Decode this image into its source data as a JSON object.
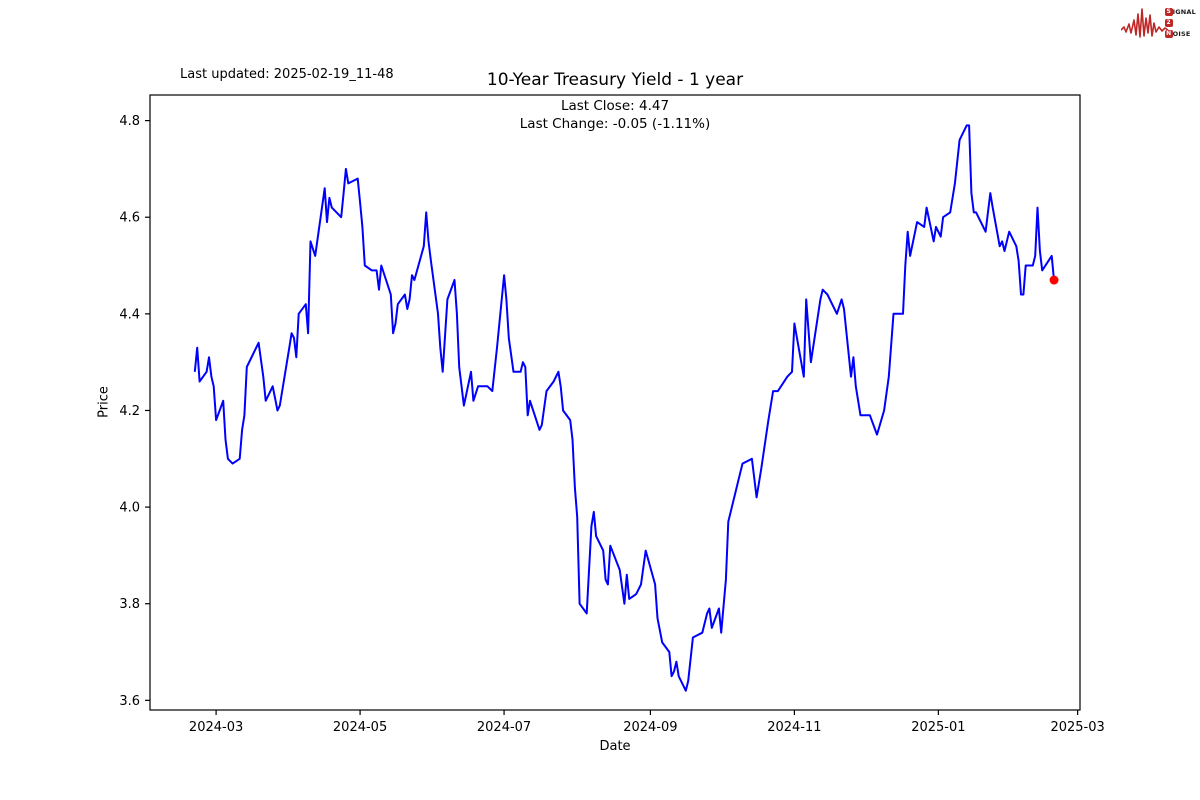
{
  "header": {
    "last_updated": "Last updated: 2025-02-19_11-48"
  },
  "logo": {
    "color": "#bf2626",
    "rows": [
      {
        "badge": "S",
        "text": "IGNAL"
      },
      {
        "badge": "2",
        "text": ""
      },
      {
        "badge": "N",
        "text": "OISE"
      }
    ]
  },
  "chart_data": {
    "type": "line",
    "title": "10-Year Treasury Yield - 1 year",
    "subtitle_lines": [
      "Last Close: 4.47",
      "Last Change: -0.05 (-1.11%)"
    ],
    "xlabel": "Date",
    "ylabel": "Price",
    "x_ticks": [
      "2024-03",
      "2024-05",
      "2024-07",
      "2024-09",
      "2024-11",
      "2025-01",
      "2025-03"
    ],
    "y_ticks": [
      "3.6",
      "3.8",
      "4.0",
      "4.2",
      "4.4",
      "4.6",
      "4.8"
    ],
    "xlim": [
      "2024-02-02",
      "2025-03-02"
    ],
    "ylim": [
      3.58,
      4.853
    ],
    "grid": false,
    "legend": "none",
    "line_color": "#0000ff",
    "last_point": {
      "date": "2025-02-19",
      "value": 4.47,
      "marker_color": "#ff0000"
    },
    "series_name": "10-Year Treasury Yield",
    "points": [
      [
        "2024-02-21",
        4.28
      ],
      [
        "2024-02-22",
        4.33
      ],
      [
        "2024-02-23",
        4.26
      ],
      [
        "2024-02-26",
        4.28
      ],
      [
        "2024-02-27",
        4.31
      ],
      [
        "2024-02-28",
        4.27
      ],
      [
        "2024-02-29",
        4.25
      ],
      [
        "2024-03-01",
        4.18
      ],
      [
        "2024-03-04",
        4.22
      ],
      [
        "2024-03-05",
        4.14
      ],
      [
        "2024-03-06",
        4.1
      ],
      [
        "2024-03-08",
        4.09
      ],
      [
        "2024-03-11",
        4.1
      ],
      [
        "2024-03-12",
        4.16
      ],
      [
        "2024-03-13",
        4.19
      ],
      [
        "2024-03-14",
        4.29
      ],
      [
        "2024-03-18",
        4.33
      ],
      [
        "2024-03-19",
        4.34
      ],
      [
        "2024-03-21",
        4.27
      ],
      [
        "2024-03-22",
        4.22
      ],
      [
        "2024-03-25",
        4.25
      ],
      [
        "2024-03-27",
        4.2
      ],
      [
        "2024-03-28",
        4.21
      ],
      [
        "2024-04-01",
        4.33
      ],
      [
        "2024-04-02",
        4.36
      ],
      [
        "2024-04-03",
        4.35
      ],
      [
        "2024-04-04",
        4.31
      ],
      [
        "2024-04-05",
        4.4
      ],
      [
        "2024-04-08",
        4.42
      ],
      [
        "2024-04-09",
        4.36
      ],
      [
        "2024-04-10",
        4.55
      ],
      [
        "2024-04-12",
        4.52
      ],
      [
        "2024-04-16",
        4.66
      ],
      [
        "2024-04-17",
        4.59
      ],
      [
        "2024-04-18",
        4.64
      ],
      [
        "2024-04-19",
        4.62
      ],
      [
        "2024-04-23",
        4.6
      ],
      [
        "2024-04-24",
        4.65
      ],
      [
        "2024-04-25",
        4.7
      ],
      [
        "2024-04-26",
        4.67
      ],
      [
        "2024-04-30",
        4.68
      ],
      [
        "2024-05-01",
        4.63
      ],
      [
        "2024-05-02",
        4.58
      ],
      [
        "2024-05-03",
        4.5
      ],
      [
        "2024-05-06",
        4.49
      ],
      [
        "2024-05-08",
        4.49
      ],
      [
        "2024-05-09",
        4.45
      ],
      [
        "2024-05-10",
        4.5
      ],
      [
        "2024-05-14",
        4.44
      ],
      [
        "2024-05-15",
        4.36
      ],
      [
        "2024-05-16",
        4.38
      ],
      [
        "2024-05-17",
        4.42
      ],
      [
        "2024-05-20",
        4.44
      ],
      [
        "2024-05-21",
        4.41
      ],
      [
        "2024-05-22",
        4.43
      ],
      [
        "2024-05-23",
        4.48
      ],
      [
        "2024-05-24",
        4.47
      ],
      [
        "2024-05-28",
        4.54
      ],
      [
        "2024-05-29",
        4.61
      ],
      [
        "2024-05-30",
        4.55
      ],
      [
        "2024-05-31",
        4.51
      ],
      [
        "2024-06-03",
        4.4
      ],
      [
        "2024-06-04",
        4.33
      ],
      [
        "2024-06-05",
        4.28
      ],
      [
        "2024-06-07",
        4.43
      ],
      [
        "2024-06-10",
        4.47
      ],
      [
        "2024-06-11",
        4.4
      ],
      [
        "2024-06-12",
        4.29
      ],
      [
        "2024-06-14",
        4.21
      ],
      [
        "2024-06-17",
        4.28
      ],
      [
        "2024-06-18",
        4.22
      ],
      [
        "2024-06-20",
        4.25
      ],
      [
        "2024-06-24",
        4.25
      ],
      [
        "2024-06-26",
        4.24
      ],
      [
        "2024-06-28",
        4.33
      ],
      [
        "2024-07-01",
        4.48
      ],
      [
        "2024-07-02",
        4.43
      ],
      [
        "2024-07-03",
        4.35
      ],
      [
        "2024-07-05",
        4.28
      ],
      [
        "2024-07-08",
        4.28
      ],
      [
        "2024-07-09",
        4.3
      ],
      [
        "2024-07-10",
        4.29
      ],
      [
        "2024-07-11",
        4.19
      ],
      [
        "2024-07-12",
        4.22
      ],
      [
        "2024-07-16",
        4.16
      ],
      [
        "2024-07-17",
        4.17
      ],
      [
        "2024-07-19",
        4.24
      ],
      [
        "2024-07-22",
        4.26
      ],
      [
        "2024-07-24",
        4.28
      ],
      [
        "2024-07-25",
        4.25
      ],
      [
        "2024-07-26",
        4.2
      ],
      [
        "2024-07-29",
        4.18
      ],
      [
        "2024-07-30",
        4.14
      ],
      [
        "2024-07-31",
        4.04
      ],
      [
        "2024-08-01",
        3.98
      ],
      [
        "2024-08-02",
        3.8
      ],
      [
        "2024-08-05",
        3.78
      ],
      [
        "2024-08-07",
        3.96
      ],
      [
        "2024-08-08",
        3.99
      ],
      [
        "2024-08-09",
        3.94
      ],
      [
        "2024-08-12",
        3.91
      ],
      [
        "2024-08-13",
        3.85
      ],
      [
        "2024-08-14",
        3.84
      ],
      [
        "2024-08-15",
        3.92
      ],
      [
        "2024-08-19",
        3.87
      ],
      [
        "2024-08-21",
        3.8
      ],
      [
        "2024-08-22",
        3.86
      ],
      [
        "2024-08-23",
        3.81
      ],
      [
        "2024-08-26",
        3.82
      ],
      [
        "2024-08-28",
        3.84
      ],
      [
        "2024-08-30",
        3.91
      ],
      [
        "2024-09-03",
        3.84
      ],
      [
        "2024-09-04",
        3.77
      ],
      [
        "2024-09-06",
        3.72
      ],
      [
        "2024-09-09",
        3.7
      ],
      [
        "2024-09-10",
        3.65
      ],
      [
        "2024-09-11",
        3.66
      ],
      [
        "2024-09-12",
        3.68
      ],
      [
        "2024-09-13",
        3.65
      ],
      [
        "2024-09-16",
        3.62
      ],
      [
        "2024-09-17",
        3.64
      ],
      [
        "2024-09-19",
        3.73
      ],
      [
        "2024-09-23",
        3.74
      ],
      [
        "2024-09-25",
        3.78
      ],
      [
        "2024-09-26",
        3.79
      ],
      [
        "2024-09-27",
        3.75
      ],
      [
        "2024-09-30",
        3.79
      ],
      [
        "2024-10-01",
        3.74
      ],
      [
        "2024-10-03",
        3.85
      ],
      [
        "2024-10-04",
        3.97
      ],
      [
        "2024-10-07",
        4.03
      ],
      [
        "2024-10-09",
        4.07
      ],
      [
        "2024-10-10",
        4.09
      ],
      [
        "2024-10-14",
        4.1
      ],
      [
        "2024-10-16",
        4.02
      ],
      [
        "2024-10-18",
        4.08
      ],
      [
        "2024-10-21",
        4.18
      ],
      [
        "2024-10-23",
        4.24
      ],
      [
        "2024-10-25",
        4.24
      ],
      [
        "2024-10-29",
        4.27
      ],
      [
        "2024-10-31",
        4.28
      ],
      [
        "2024-11-01",
        4.38
      ],
      [
        "2024-11-05",
        4.27
      ],
      [
        "2024-11-06",
        4.43
      ],
      [
        "2024-11-08",
        4.3
      ],
      [
        "2024-11-12",
        4.43
      ],
      [
        "2024-11-13",
        4.45
      ],
      [
        "2024-11-15",
        4.44
      ],
      [
        "2024-11-19",
        4.4
      ],
      [
        "2024-11-21",
        4.43
      ],
      [
        "2024-11-22",
        4.41
      ],
      [
        "2024-11-25",
        4.27
      ],
      [
        "2024-11-26",
        4.31
      ],
      [
        "2024-11-27",
        4.25
      ],
      [
        "2024-11-29",
        4.19
      ],
      [
        "2024-12-03",
        4.19
      ],
      [
        "2024-12-06",
        4.15
      ],
      [
        "2024-12-09",
        4.2
      ],
      [
        "2024-12-11",
        4.27
      ],
      [
        "2024-12-13",
        4.4
      ],
      [
        "2024-12-17",
        4.4
      ],
      [
        "2024-12-18",
        4.5
      ],
      [
        "2024-12-19",
        4.57
      ],
      [
        "2024-12-20",
        4.52
      ],
      [
        "2024-12-23",
        4.59
      ],
      [
        "2024-12-26",
        4.58
      ],
      [
        "2024-12-27",
        4.62
      ],
      [
        "2024-12-30",
        4.55
      ],
      [
        "2024-12-31",
        4.58
      ],
      [
        "2025-01-02",
        4.56
      ],
      [
        "2025-01-03",
        4.6
      ],
      [
        "2025-01-06",
        4.61
      ],
      [
        "2025-01-08",
        4.67
      ],
      [
        "2025-01-10",
        4.76
      ],
      [
        "2025-01-13",
        4.79
      ],
      [
        "2025-01-14",
        4.79
      ],
      [
        "2025-01-15",
        4.65
      ],
      [
        "2025-01-16",
        4.61
      ],
      [
        "2025-01-17",
        4.61
      ],
      [
        "2025-01-21",
        4.57
      ],
      [
        "2025-01-23",
        4.65
      ],
      [
        "2025-01-24",
        4.62
      ],
      [
        "2025-01-27",
        4.54
      ],
      [
        "2025-01-28",
        4.55
      ],
      [
        "2025-01-29",
        4.53
      ],
      [
        "2025-01-31",
        4.57
      ],
      [
        "2025-02-03",
        4.54
      ],
      [
        "2025-02-04",
        4.51
      ],
      [
        "2025-02-05",
        4.44
      ],
      [
        "2025-02-06",
        4.44
      ],
      [
        "2025-02-07",
        4.5
      ],
      [
        "2025-02-10",
        4.5
      ],
      [
        "2025-02-11",
        4.52
      ],
      [
        "2025-02-12",
        4.62
      ],
      [
        "2025-02-13",
        4.53
      ],
      [
        "2025-02-14",
        4.49
      ],
      [
        "2025-02-18",
        4.52
      ],
      [
        "2025-02-19",
        4.47
      ]
    ]
  }
}
